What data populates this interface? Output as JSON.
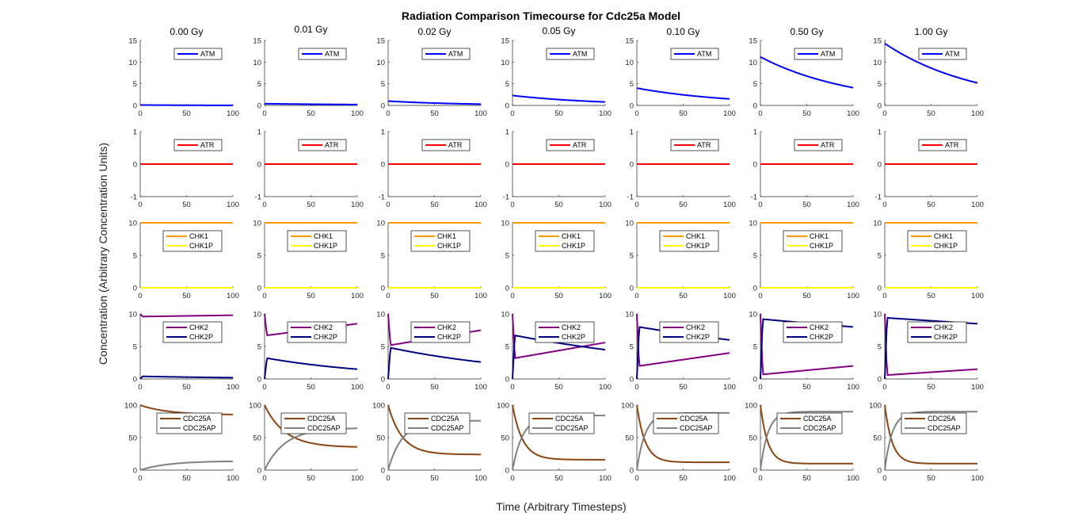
{
  "figure": {
    "title": "Radiation Comparison Timecourse for Cdc25a Model",
    "xlabel": "Time (Arbitrary Timesteps)",
    "ylabel": "Concentration (Arbitrary Concentration Units)"
  },
  "colors": {
    "ATM": "#0000ff",
    "ATR": "#ff0000",
    "CHK1": "#ff9900",
    "CHK1P": "#ffff00",
    "CHK2": "#800080",
    "CHK2P": "#000080",
    "CDC25A": "#8b4513",
    "CDC25AP": "#808080"
  },
  "chart_data": {
    "type": "line",
    "columns": [
      "0.00 Gy",
      "0.01 Gy",
      "0.02 Gy",
      "0.05 Gy",
      "0.10 Gy",
      "0.50 Gy",
      "1.00 Gy"
    ],
    "rows": [
      {
        "key": "atm",
        "ylim": [
          0,
          15
        ],
        "yticks": [
          "0",
          "5",
          "10",
          "15"
        ],
        "legend": [
          "ATM"
        ],
        "series": [
          {
            "name": "ATM",
            "color": "#0000ff",
            "kind": "exp",
            "params": [
              [
                0.1,
                0.02
              ],
              [
                0.4,
                0.2
              ],
              [
                1.0,
                0.3
              ],
              [
                2.3,
                0.8
              ],
              [
                4.0,
                1.5
              ],
              [
                11.2,
                4.1
              ],
              [
                14.3,
                5.2
              ]
            ]
          }
        ]
      },
      {
        "key": "atr",
        "ylim": [
          -1,
          1
        ],
        "yticks": [
          "-1",
          "0",
          "1"
        ],
        "legend": [
          "ATR"
        ],
        "series": [
          {
            "name": "ATR",
            "color": "#ff0000",
            "kind": "const",
            "params": [
              [
                0
              ],
              [
                0
              ],
              [
                0
              ],
              [
                0
              ],
              [
                0
              ],
              [
                0
              ],
              [
                0
              ]
            ]
          }
        ]
      },
      {
        "key": "chk1",
        "ylim": [
          0,
          10
        ],
        "yticks": [
          "0",
          "5",
          "10"
        ],
        "legend": [
          "CHK1",
          "CHK1P"
        ],
        "series": [
          {
            "name": "CHK1",
            "color": "#ff9900",
            "kind": "const",
            "params": [
              [
                10
              ],
              [
                10
              ],
              [
                10
              ],
              [
                10
              ],
              [
                10
              ],
              [
                10
              ],
              [
                10
              ]
            ]
          },
          {
            "name": "CHK1P",
            "color": "#ffff00",
            "kind": "const",
            "params": [
              [
                0
              ],
              [
                0
              ],
              [
                0
              ],
              [
                0
              ],
              [
                0
              ],
              [
                0
              ],
              [
                0
              ]
            ]
          }
        ]
      },
      {
        "key": "chk2",
        "ylim": [
          0,
          10
        ],
        "yticks": [
          "0",
          "5",
          "10"
        ],
        "legend": [
          "CHK2",
          "CHK2P"
        ],
        "series": [
          {
            "name": "CHK2",
            "color": "#800080",
            "kind": "dipRise",
            "params": [
              [
                10,
                9.6,
                9.8
              ],
              [
                10,
                6.7,
                8.5
              ],
              [
                10,
                5.2,
                7.5
              ],
              [
                10,
                3.2,
                5.6
              ],
              [
                10,
                2.0,
                4.0
              ],
              [
                10,
                0.7,
                2.0
              ],
              [
                10,
                0.6,
                1.5
              ]
            ]
          },
          {
            "name": "CHK2P",
            "color": "#000080",
            "kind": "riseDecay",
            "params": [
              [
                0,
                0.4,
                0.2
              ],
              [
                0,
                3.2,
                1.5
              ],
              [
                0,
                4.8,
                2.6
              ],
              [
                0,
                6.7,
                4.5
              ],
              [
                0,
                8.0,
                6.0
              ],
              [
                0,
                9.2,
                8.0
              ],
              [
                0,
                9.4,
                8.5
              ]
            ]
          }
        ]
      },
      {
        "key": "cdc25a",
        "ylim": [
          0,
          100
        ],
        "yticks": [
          "0",
          "50",
          "100"
        ],
        "legend": [
          "CDC25A",
          "CDC25AP"
        ],
        "series": [
          {
            "name": "CDC25A",
            "color": "#8b4513",
            "kind": "decayTo",
            "params": [
              [
                100,
                85,
                30
              ],
              [
                100,
                35,
                22
              ],
              [
                100,
                24,
                15
              ],
              [
                100,
                16,
                11
              ],
              [
                100,
                12,
                9
              ],
              [
                100,
                10,
                8
              ],
              [
                100,
                10,
                8
              ]
            ]
          },
          {
            "name": "CDC25AP",
            "color": "#808080",
            "kind": "riseTo",
            "params": [
              [
                0,
                14,
                30
              ],
              [
                0,
                65,
                22
              ],
              [
                0,
                76,
                15
              ],
              [
                0,
                84,
                11
              ],
              [
                0,
                88,
                9
              ],
              [
                0,
                90,
                8
              ],
              [
                0,
                90,
                8
              ]
            ]
          }
        ]
      }
    ],
    "xlim": [
      0,
      100
    ],
    "xticks": [
      "0",
      "50",
      "100"
    ],
    "grid": false,
    "legend_placement": "top-right"
  }
}
